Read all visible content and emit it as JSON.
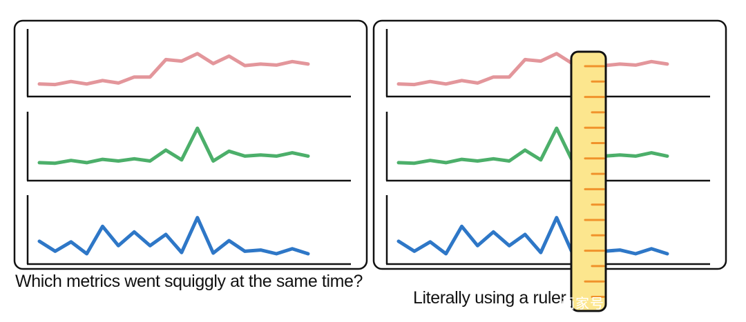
{
  "panels": [
    {
      "id": "left",
      "caption": "Which metrics went squiggly at the same time?",
      "has_ruler": false
    },
    {
      "id": "right",
      "caption": "Literally using a ruler",
      "has_ruler": true
    }
  ],
  "watermark": "画家号",
  "series": [
    {
      "color": "#e3969b",
      "values": [
        3,
        2,
        8,
        3,
        10,
        5,
        17,
        17,
        52,
        49,
        64,
        44,
        59,
        40,
        43,
        41,
        48,
        43
      ]
    },
    {
      "color": "#4caf6a",
      "values": [
        9,
        8,
        13,
        9,
        15,
        12,
        16,
        12,
        32,
        14,
        72,
        12,
        30,
        21,
        23,
        21,
        27,
        21
      ]
    },
    {
      "color": "#2e77c7",
      "values": [
        20,
        4,
        19,
        0,
        44,
        13,
        35,
        13,
        31,
        2,
        58,
        1,
        21,
        4,
        6,
        0,
        8,
        0
      ]
    }
  ],
  "colors": {
    "frame": "#111111",
    "ruler_fill": "#fce68e",
    "ruler_ticks": "#f0922b"
  }
}
